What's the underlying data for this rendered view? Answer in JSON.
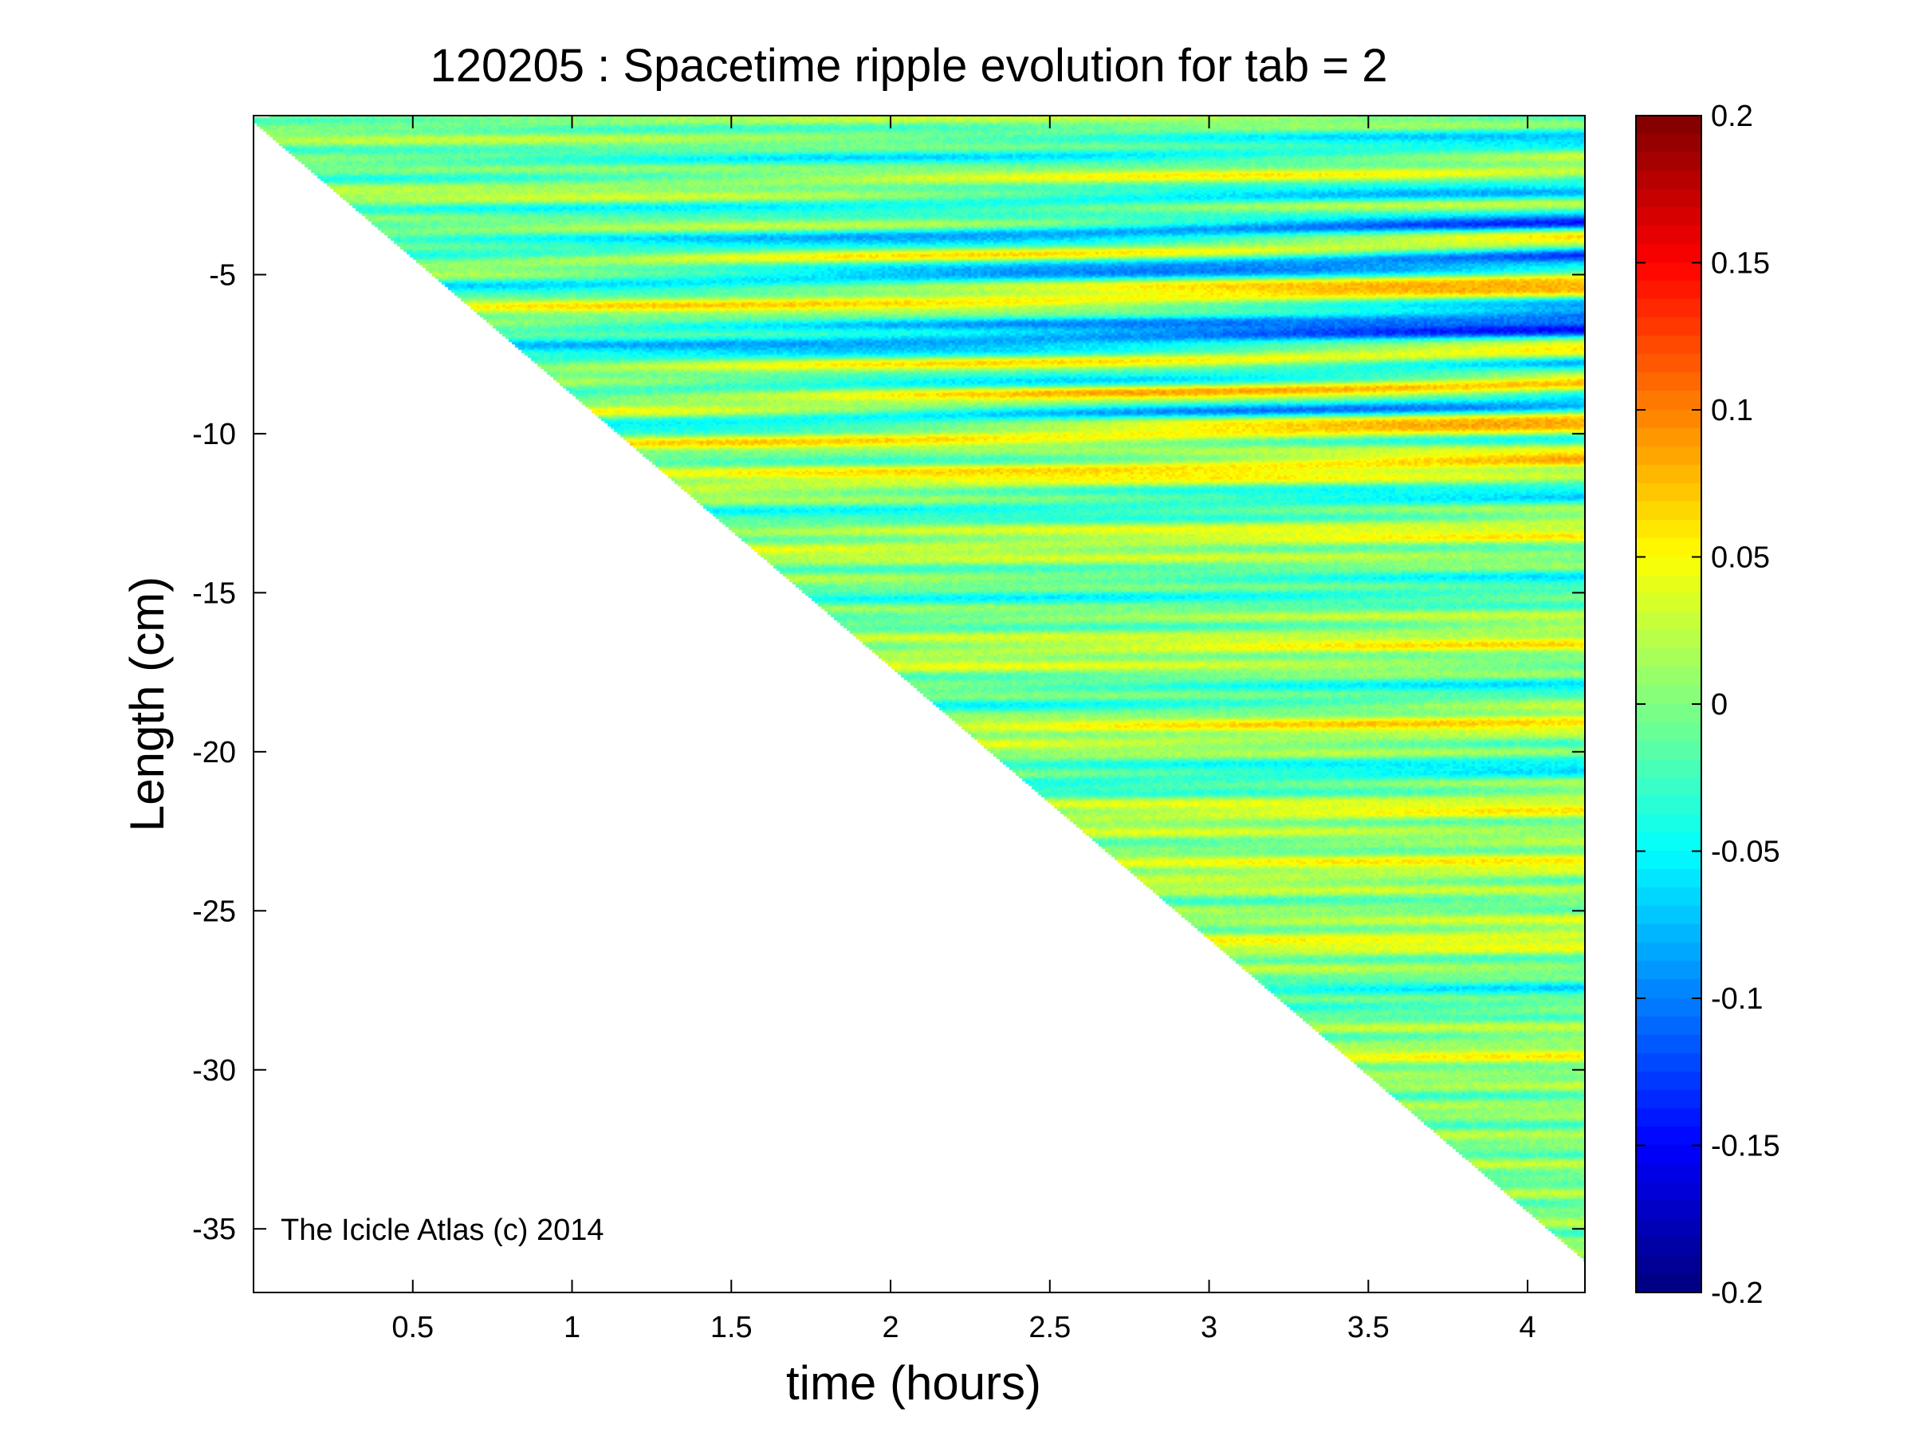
{
  "chart_data": {
    "type": "heatmap",
    "title": "120205 : Spacetime ripple evolution for tab = 2",
    "xlabel": "time (hours)",
    "ylabel": "Length (cm)",
    "xlim": [
      0,
      4.18
    ],
    "ylim": [
      -37,
      0
    ],
    "xticks": [
      {
        "value": 0.5,
        "label": "0.5"
      },
      {
        "value": 1,
        "label": "1"
      },
      {
        "value": 1.5,
        "label": "1.5"
      },
      {
        "value": 2,
        "label": "2"
      },
      {
        "value": 2.5,
        "label": "2.5"
      },
      {
        "value": 3,
        "label": "3"
      },
      {
        "value": 3.5,
        "label": "3.5"
      },
      {
        "value": 4,
        "label": "4"
      }
    ],
    "yticks": [
      {
        "value": -5,
        "label": "-5"
      },
      {
        "value": -10,
        "label": "-10"
      },
      {
        "value": -15,
        "label": "-15"
      },
      {
        "value": -20,
        "label": "-20"
      },
      {
        "value": -25,
        "label": "-25"
      },
      {
        "value": -30,
        "label": "-30"
      },
      {
        "value": -35,
        "label": "-35"
      }
    ],
    "colorbar": {
      "colormap": "jet",
      "clim": [
        -0.2,
        0.2
      ],
      "ticks": [
        {
          "value": 0.2,
          "label": "0.2"
        },
        {
          "value": 0.15,
          "label": "0.15"
        },
        {
          "value": 0.1,
          "label": "0.1"
        },
        {
          "value": 0.05,
          "label": "0.05"
        },
        {
          "value": 0,
          "label": "0"
        },
        {
          "value": -0.05,
          "label": "-0.05"
        },
        {
          "value": -0.1,
          "label": "-0.1"
        },
        {
          "value": -0.15,
          "label": "-0.15"
        },
        {
          "value": -0.2,
          "label": "-0.2"
        }
      ]
    },
    "data_region": {
      "description": "icicle length grows linearly with time; field defined from tip to root",
      "tip_at_start": {
        "time": 0,
        "length": -0.2
      },
      "tip_at_end": {
        "time": 4.18,
        "length": -36.0
      }
    },
    "ripple_bands": [
      {
        "length": -1.3,
        "amplitude": -0.06
      },
      {
        "length": -2.2,
        "amplitude": 0.05
      },
      {
        "length": -2.8,
        "amplitude": -0.09
      },
      {
        "length": -3.4,
        "amplitude": 0.07
      },
      {
        "length": -3.9,
        "amplitude": -0.19
      },
      {
        "length": -4.4,
        "amplitude": 0.17
      },
      {
        "length": -4.9,
        "amplitude": -0.17
      },
      {
        "length": -5.8,
        "amplitude": 0.09
      },
      {
        "length": -6.6,
        "amplitude": -0.08
      },
      {
        "length": -7.3,
        "amplitude": -0.13
      },
      {
        "length": -7.9,
        "amplitude": 0.13
      },
      {
        "length": -8.4,
        "amplitude": -0.16
      },
      {
        "length": -8.9,
        "amplitude": 0.16
      },
      {
        "length": -9.5,
        "amplitude": -0.15
      },
      {
        "length": -10.1,
        "amplitude": 0.13
      },
      {
        "length": -10.6,
        "amplitude": -0.06
      },
      {
        "length": -11.3,
        "amplitude": 0.08
      },
      {
        "length": -12.4,
        "amplitude": -0.05
      },
      {
        "length": -13.5,
        "amplitude": 0.04
      },
      {
        "length": -15.2,
        "amplitude": -0.04
      },
      {
        "length": -17.0,
        "amplitude": 0.04
      },
      {
        "length": -18.5,
        "amplitude": -0.04
      },
      {
        "length": -19.5,
        "amplitude": 0.05
      },
      {
        "length": -21.0,
        "amplitude": -0.05
      },
      {
        "length": -22.2,
        "amplitude": 0.04
      },
      {
        "length": -24.0,
        "amplitude": 0.04
      },
      {
        "length": -26.3,
        "amplitude": 0.04
      },
      {
        "length": -28.0,
        "amplitude": -0.04
      },
      {
        "length": -30.0,
        "amplitude": 0.03
      }
    ]
  },
  "watermark": "The Icicle Atlas (c) 2014"
}
